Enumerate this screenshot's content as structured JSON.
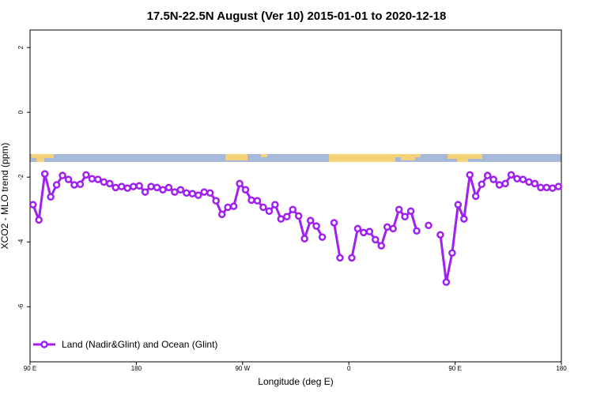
{
  "chart_data": {
    "type": "line",
    "title": "17.5N-22.5N August (Ver 10)   2015-01-01 to 2020-12-18",
    "x_label": "Longitude (deg E)",
    "y_label": "XCO2 - MLO trend (ppm)",
    "xlim": [
      90,
      540
    ],
    "ylim": [
      -7.7,
      2.54
    ],
    "xticks": [
      {
        "value": 90,
        "label": "90 E"
      },
      {
        "value": 180,
        "label": "180"
      },
      {
        "value": 270,
        "label": "90 W"
      },
      {
        "value": 360,
        "label": "0"
      },
      {
        "value": 450,
        "label": "90 E"
      },
      {
        "value": 540,
        "label": "180"
      }
    ],
    "yticks": [
      2,
      0,
      -2,
      -4,
      -6
    ],
    "legend": "bottomleft",
    "x": [
      92.5,
      97.5,
      102.5,
      107.5,
      112.5,
      117.5,
      122.5,
      127.5,
      132.5,
      137.5,
      142.5,
      147.5,
      152.5,
      157.5,
      162.5,
      167.5,
      172.5,
      177.5,
      182.5,
      187.5,
      192.5,
      197.5,
      202.5,
      207.5,
      212.5,
      217.5,
      222.5,
      227.5,
      232.5,
      237.5,
      242.5,
      247.5,
      252.5,
      257.5,
      262.5,
      267.5,
      272.5,
      277.5,
      282.5,
      287.5,
      292.5,
      297.5,
      302.5,
      307.5,
      312.5,
      317.5,
      322.5,
      327.5,
      332.5,
      337.5,
      342.5,
      347.5,
      352.5,
      357.5,
      362.5,
      367.5,
      372.5,
      377.5,
      382.5,
      387.5,
      392.5,
      397.5,
      402.5,
      407.5,
      412.5,
      417.5,
      422.5,
      427.5,
      432.5,
      437.5,
      442.5,
      447.5,
      452.5,
      457.5,
      462.5,
      467.5,
      472.5,
      477.5,
      482.5,
      487.5,
      492.5,
      497.5,
      502.5,
      507.5,
      512.5,
      517.5,
      522.5,
      527.5,
      532.5,
      537.5
    ],
    "series": [
      {
        "name": "Land (Nadir&Glint) and Ocean (Glint)",
        "color": "#a020f0",
        "values": [
          -2.85,
          -3.32,
          -1.9,
          -2.61,
          -2.24,
          -1.95,
          -2.07,
          -2.24,
          -2.22,
          -1.93,
          -2.05,
          -2.07,
          -2.15,
          -2.2,
          -2.32,
          -2.29,
          -2.34,
          -2.29,
          -2.27,
          -2.46,
          -2.29,
          -2.32,
          -2.39,
          -2.32,
          -2.46,
          -2.39,
          -2.49,
          -2.51,
          -2.56,
          -2.46,
          -2.49,
          -2.73,
          -3.15,
          -2.93,
          -2.9,
          -2.2,
          -2.39,
          -2.71,
          -2.73,
          -2.93,
          -3.05,
          -2.85,
          -3.29,
          -3.22,
          -3.0,
          -3.2,
          -3.9,
          -3.34,
          -3.51,
          -3.85,
          null,
          -3.41,
          -4.49,
          null,
          -4.49,
          -3.59,
          -3.71,
          -3.68,
          -3.93,
          -4.12,
          -3.54,
          -3.59,
          -3.0,
          -3.22,
          -3.05,
          -3.66,
          null,
          -3.49,
          null,
          -3.78,
          -5.24,
          -4.34,
          -2.85,
          -3.29,
          -1.93,
          -2.59,
          -2.22,
          -1.95,
          -2.07,
          -2.24,
          -2.2,
          -1.93,
          -2.05,
          -2.07,
          -2.15,
          -2.2,
          -2.32,
          -2.32,
          -2.34,
          -2.29
        ]
      }
    ]
  }
}
